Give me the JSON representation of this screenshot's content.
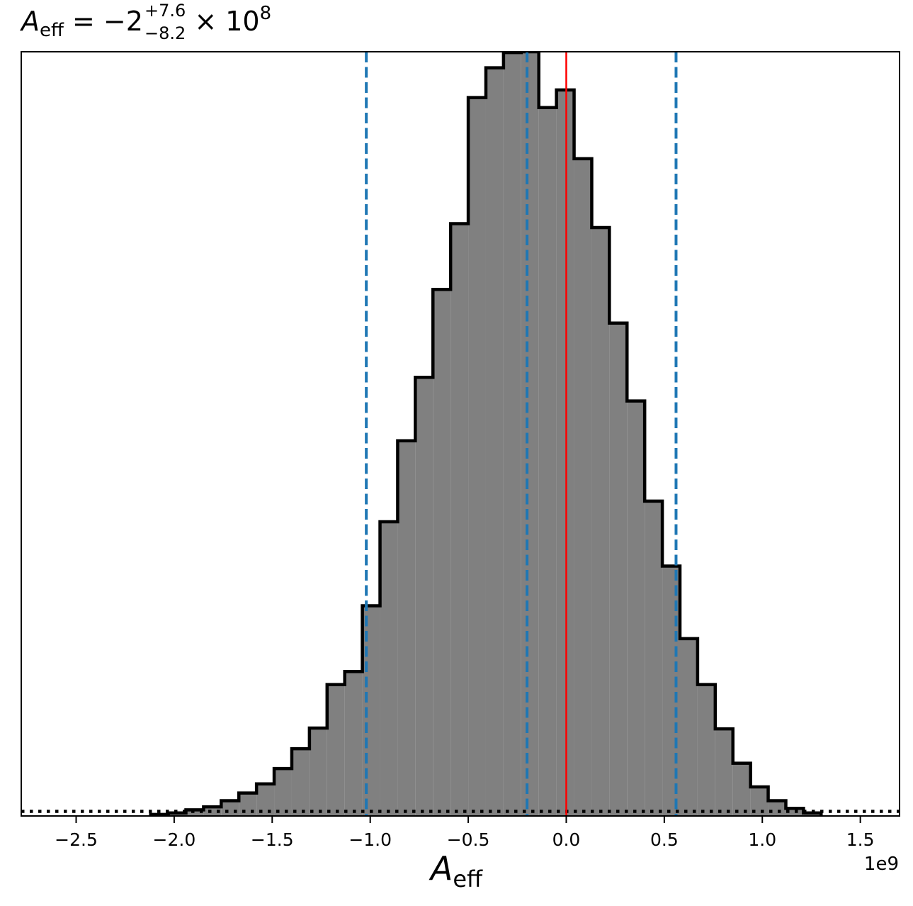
{
  "title": {
    "variable": "A",
    "variable_sub": "eff",
    "equals": "= −2",
    "upper": "+7.6",
    "lower": "−8.2",
    "times": "× 10",
    "exponent": "8"
  },
  "xlabel": {
    "variable": "A",
    "variable_sub": "eff"
  },
  "offset_text": "1e9",
  "chart_data": {
    "type": "histogram",
    "title": "A_eff = −2 (+7.6/−8.2) × 10^8",
    "xlabel": "A_eff",
    "ylabel": "",
    "x_scale_factor": "1e9",
    "xlim": [
      -2.78,
      1.7
    ],
    "ylim": [
      0,
      1.0
    ],
    "xticks": [
      -2.5,
      -2.0,
      -1.5,
      -1.0,
      -0.5,
      0.0,
      0.5,
      1.0,
      1.5
    ],
    "xtick_labels": [
      "−2.5",
      "−2.0",
      "−1.5",
      "−1.0",
      "−0.5",
      "0.0",
      "0.5",
      "1.0",
      "1.5"
    ],
    "yticks_visible": false,
    "bin_edges": [
      -2.12,
      -2.03,
      -1.94,
      -1.85,
      -1.76,
      -1.67,
      -1.58,
      -1.49,
      -1.4,
      -1.31,
      -1.22,
      -1.13,
      -1.04,
      -0.95,
      -0.86,
      -0.77,
      -0.68,
      -0.59,
      -0.5,
      -0.41,
      -0.32,
      -0.23,
      -0.14,
      -0.05,
      0.04,
      0.13,
      0.22,
      0.31,
      0.4,
      0.49,
      0.58,
      0.67,
      0.76,
      0.85,
      0.94,
      1.03,
      1.12,
      1.21,
      1.3
    ],
    "counts": [
      0.002,
      0.004,
      0.008,
      0.012,
      0.02,
      0.03,
      0.042,
      0.062,
      0.088,
      0.115,
      0.172,
      0.189,
      0.275,
      0.385,
      0.491,
      0.574,
      0.689,
      0.775,
      0.94,
      0.979,
      0.999,
      1.0,
      0.927,
      0.95,
      0.86,
      0.77,
      0.645,
      0.543,
      0.412,
      0.327,
      0.232,
      0.172,
      0.114,
      0.069,
      0.038,
      0.02,
      0.01,
      0.004
    ],
    "fill_color": "#808080",
    "edge_color": "#000000",
    "vlines": [
      {
        "x": -1.02,
        "style": "dashed",
        "color": "#1f77b4"
      },
      {
        "x": -0.2,
        "style": "dashed",
        "color": "#1f77b4"
      },
      {
        "x": 0.56,
        "style": "dashed",
        "color": "#1f77b4"
      },
      {
        "x": 0.0,
        "style": "solid",
        "color": "#ff0000"
      }
    ],
    "hlines": [
      {
        "y": 0.006,
        "style": "dotted",
        "color": "#000000"
      }
    ],
    "grid": false,
    "legend": "none"
  }
}
